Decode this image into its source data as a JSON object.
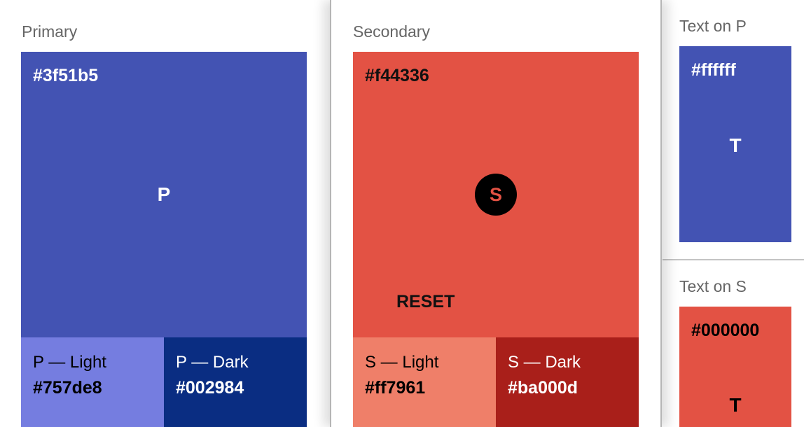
{
  "primary": {
    "title": "Primary",
    "hex": "#3f51b5",
    "letter": "P",
    "light_label": "P — Light",
    "light_hex": "#757de8",
    "dark_label": "P — Dark",
    "dark_hex": "#002984"
  },
  "secondary": {
    "title": "Secondary",
    "hex": "#f44336",
    "fab_letter": "S",
    "reset_label": "RESET",
    "light_label": "S — Light",
    "light_hex": "#ff7961",
    "dark_label": "S — Dark",
    "dark_hex": "#ba000d"
  },
  "text_on_p": {
    "title": "Text on P",
    "hex": "#ffffff",
    "letter": "T"
  },
  "text_on_s": {
    "title": "Text on S",
    "hex": "#000000",
    "letter": "T"
  },
  "colors": {
    "primary": "#4353b3",
    "primary_light": "#757de0",
    "primary_dark": "#0a2d82",
    "secondary": "#e35244",
    "secondary_light": "#ef7f69",
    "secondary_dark": "#a91f1a"
  }
}
